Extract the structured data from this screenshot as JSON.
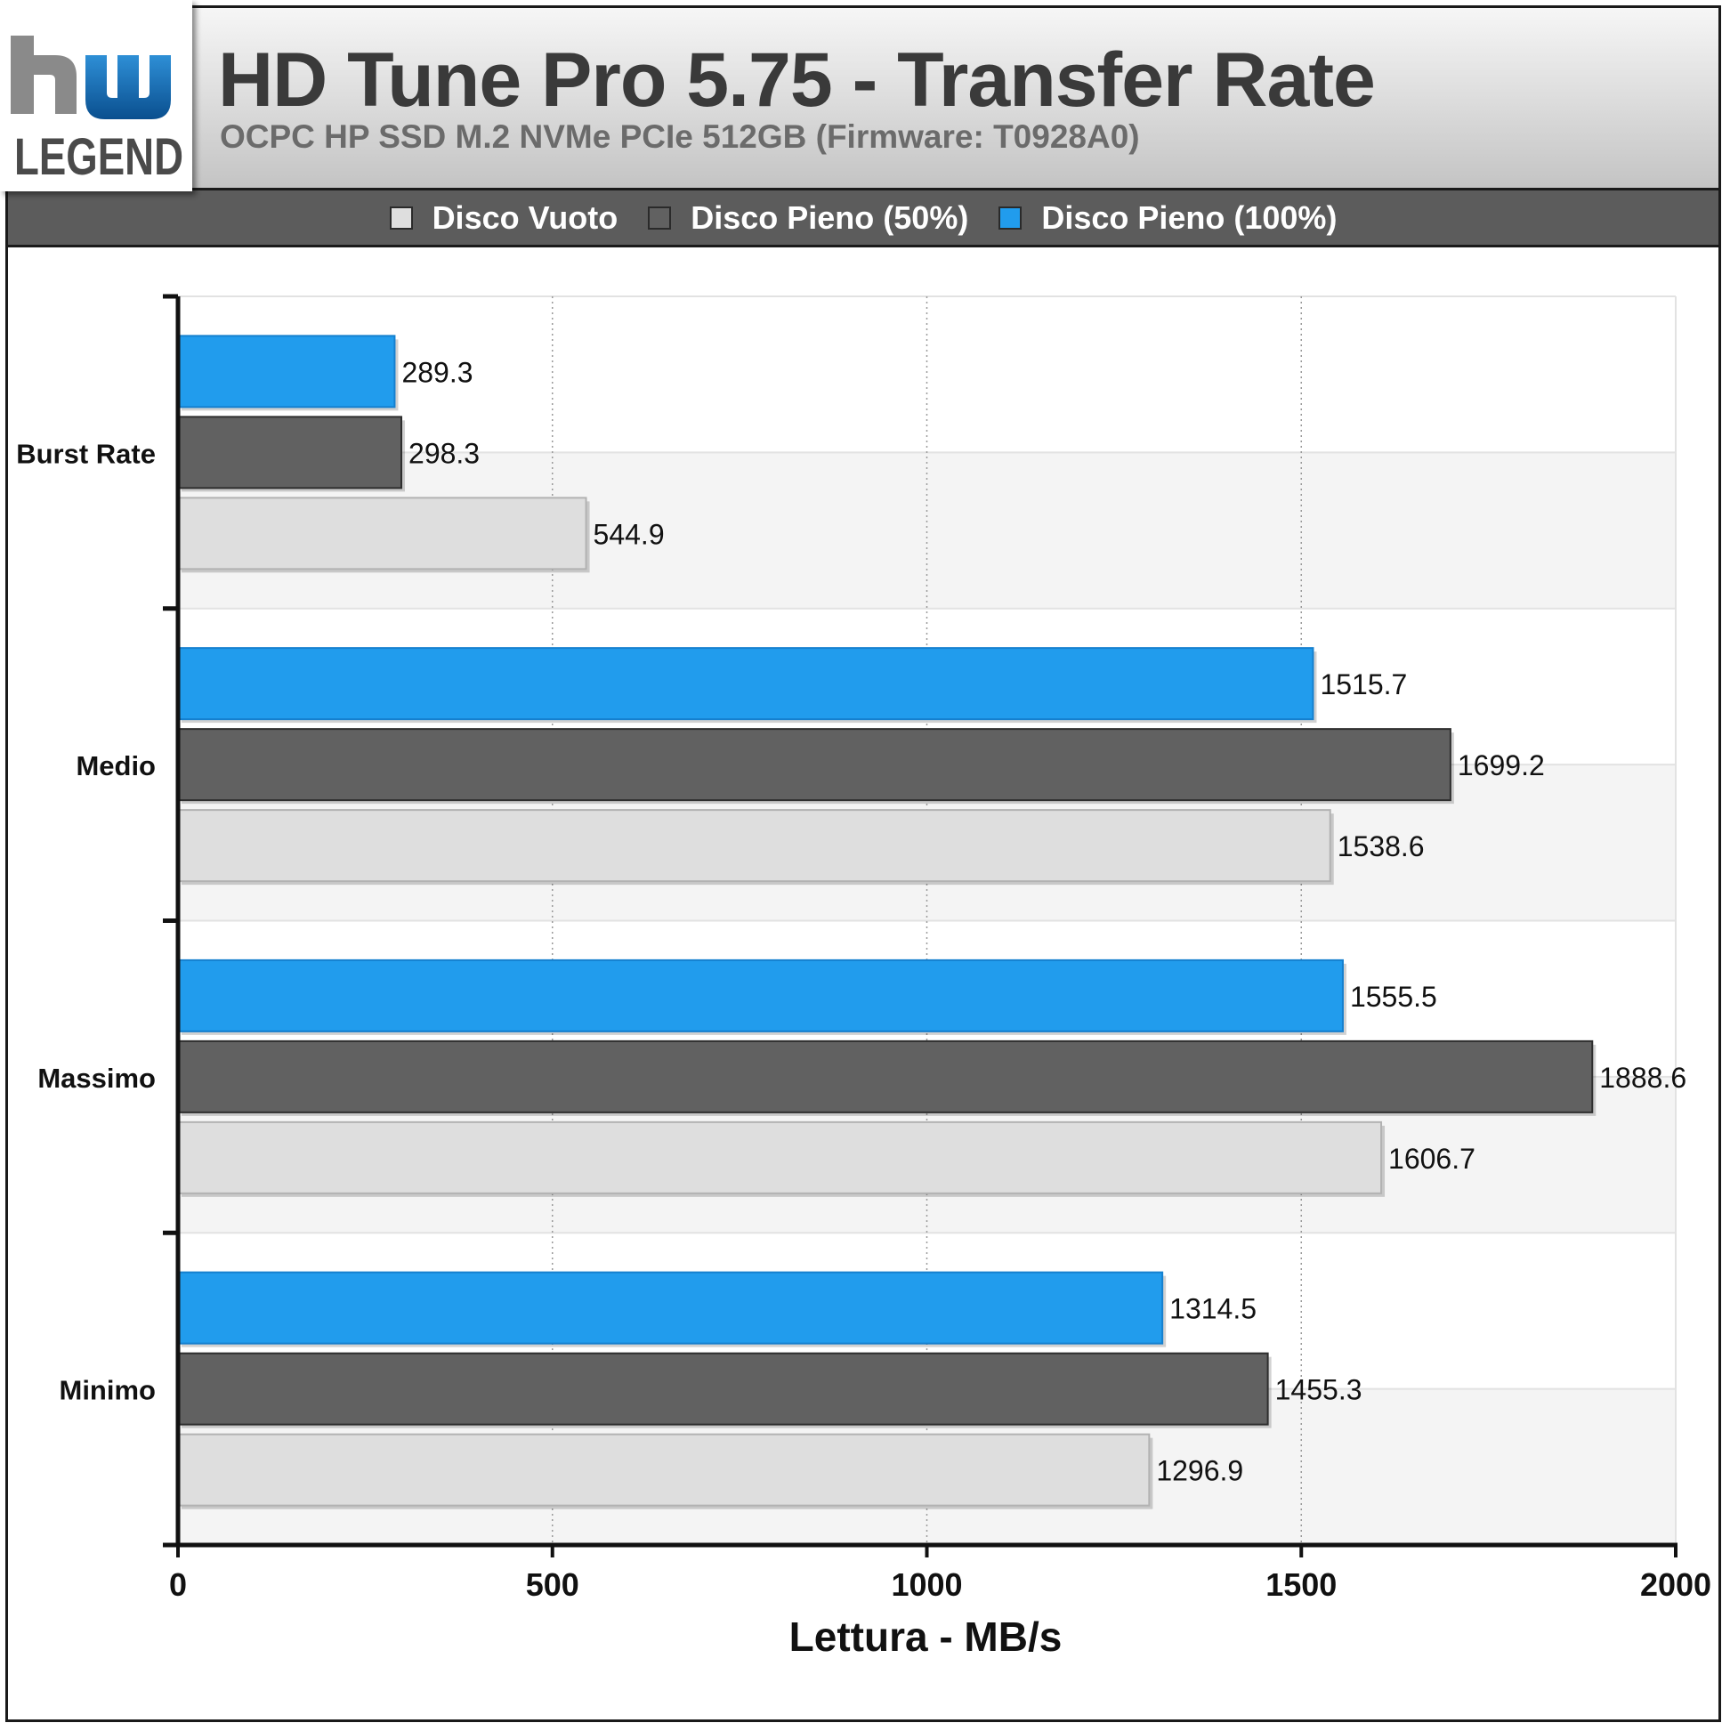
{
  "header": {
    "title": "HD Tune Pro 5.75 - Transfer Rate",
    "subtitle": "OCPC HP SSD M.2 NVMe PCIe 512GB (Firmware: T0928A0)",
    "logo_text": "LEGEND",
    "logo_mark": "hw"
  },
  "colors": {
    "disco_vuoto": "#dedede",
    "disco_pieno_50": "#616161",
    "disco_pieno_100": "#219ced"
  },
  "chart_data": {
    "type": "bar",
    "orientation": "horizontal",
    "categories": [
      "Burst Rate",
      "Medio",
      "Massimo",
      "Minimo"
    ],
    "series": [
      {
        "name": "Disco Vuoto",
        "color": "#dedede",
        "values": [
          544.9,
          1538.6,
          1606.7,
          1296.9
        ]
      },
      {
        "name": "Disco Pieno (50%)",
        "color": "#616161",
        "values": [
          298.3,
          1699.2,
          1888.6,
          1455.3
        ]
      },
      {
        "name": "Disco Pieno (100%)",
        "color": "#219ced",
        "values": [
          289.3,
          1515.7,
          1555.5,
          1314.5
        ]
      }
    ],
    "xlabel": "Lettura - MB/s",
    "xlim": [
      0,
      2000
    ],
    "xticks": [
      0,
      500,
      1000,
      1500,
      2000
    ],
    "xtick_labels": [
      "0",
      "500",
      "1000",
      "1500",
      "2000"
    ],
    "grid": "vertical dotted",
    "legend_position": "top"
  }
}
